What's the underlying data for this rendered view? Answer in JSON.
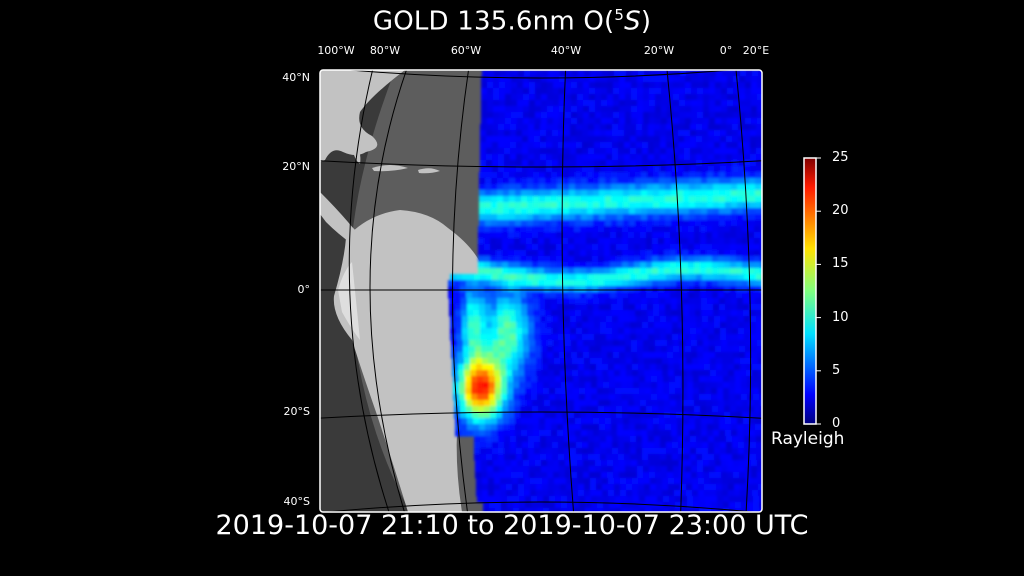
{
  "title": {
    "main": "GOLD 135.6nm O(",
    "sup": "5",
    "species": "S",
    "close": ")"
  },
  "lon_ticks": [
    {
      "text": "100°W",
      "lon": -100
    },
    {
      "text": "80°W",
      "lon": -80
    },
    {
      "text": "60°W",
      "lon": -60
    },
    {
      "text": "40°W",
      "lon": -40
    },
    {
      "text": "20°W",
      "lon": -20
    },
    {
      "text": "0°",
      "lon": 0
    },
    {
      "text": "20°E",
      "lon": 20
    }
  ],
  "lat_ticks": [
    {
      "text": "40°N",
      "lat": 40
    },
    {
      "text": "20°N",
      "lat": 20
    },
    {
      "text": "0°",
      "lat": 0
    },
    {
      "text": "20°S",
      "lat": -20
    },
    {
      "text": "40°S",
      "lat": -40
    }
  ],
  "colorbar": {
    "label": "Rayleigh",
    "colormap": "jet",
    "range": [
      0,
      25
    ],
    "ticks": [
      "0",
      "5",
      "10",
      "15",
      "20",
      "25"
    ]
  },
  "footer": "2019-10-07 21:10 to 2019-10-07 23:00 UTC"
}
